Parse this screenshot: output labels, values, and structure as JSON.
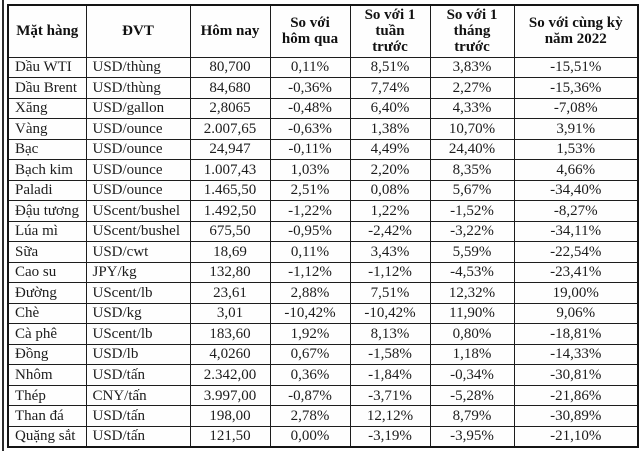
{
  "table": {
    "columns": [
      {
        "label": "Mặt hàng"
      },
      {
        "label": "ĐVT"
      },
      {
        "label": "Hôm nay"
      },
      {
        "label": "So với\nhôm qua"
      },
      {
        "label": "So với 1\ntuần\ntrước"
      },
      {
        "label": "So với 1\ntháng\ntrước"
      },
      {
        "label": "So với cùng kỳ\nnăm 2022"
      }
    ],
    "rows": [
      {
        "name": "Dầu WTI",
        "unit": "USD/thùng",
        "today": "80,700",
        "vs_yesterday": "0,11%",
        "vs_week": "8,51%",
        "vs_month": "3,83%",
        "vs_2022": "-15,51%"
      },
      {
        "name": "Dầu Brent",
        "unit": "USD/thùng",
        "today": "84,680",
        "vs_yesterday": "-0,36%",
        "vs_week": "7,74%",
        "vs_month": "2,27%",
        "vs_2022": "-15,36%"
      },
      {
        "name": "Xăng",
        "unit": "USD/gallon",
        "today": "2,8065",
        "vs_yesterday": "-0,48%",
        "vs_week": "6,40%",
        "vs_month": "4,33%",
        "vs_2022": "-7,08%"
      },
      {
        "name": "Vàng",
        "unit": "USD/ounce",
        "today": "2.007,65",
        "vs_yesterday": "-0,63%",
        "vs_week": "1,38%",
        "vs_month": "10,70%",
        "vs_2022": "3,91%"
      },
      {
        "name": "Bạc",
        "unit": "USD/ounce",
        "today": "24,947",
        "vs_yesterday": "-0,11%",
        "vs_week": "4,49%",
        "vs_month": "24,40%",
        "vs_2022": "1,53%"
      },
      {
        "name": "Bạch kim",
        "unit": "USD/ounce",
        "today": "1.007,43",
        "vs_yesterday": "1,03%",
        "vs_week": "2,20%",
        "vs_month": "8,35%",
        "vs_2022": "4,66%"
      },
      {
        "name": "Paladi",
        "unit": "USD/ounce",
        "today": "1.465,50",
        "vs_yesterday": "2,51%",
        "vs_week": "0,08%",
        "vs_month": "5,67%",
        "vs_2022": "-34,40%"
      },
      {
        "name": "Đậu tương",
        "unit": "UScent/bushel",
        "today": "1.492,50",
        "vs_yesterday": "-1,22%",
        "vs_week": "1,22%",
        "vs_month": "-1,52%",
        "vs_2022": "-8,27%"
      },
      {
        "name": "Lúa mì",
        "unit": "UScent/bushel",
        "today": "675,50",
        "vs_yesterday": "-0,95%",
        "vs_week": "-2,42%",
        "vs_month": "-3,22%",
        "vs_2022": "-34,11%"
      },
      {
        "name": "Sữa",
        "unit": "USD/cwt",
        "today": "18,69",
        "vs_yesterday": "0,11%",
        "vs_week": "3,43%",
        "vs_month": "5,59%",
        "vs_2022": "-22,54%"
      },
      {
        "name": "Cao su",
        "unit": "JPY/kg",
        "today": "132,80",
        "vs_yesterday": "-1,12%",
        "vs_week": "-1,12%",
        "vs_month": "-4,53%",
        "vs_2022": "-23,41%"
      },
      {
        "name": "Đường",
        "unit": "UScent/lb",
        "today": "23,61",
        "vs_yesterday": "2,88%",
        "vs_week": "7,51%",
        "vs_month": "12,32%",
        "vs_2022": "19,00%"
      },
      {
        "name": "Chè",
        "unit": "USD/kg",
        "today": "3,01",
        "vs_yesterday": "-10,42%",
        "vs_week": "-10,42%",
        "vs_month": "11,90%",
        "vs_2022": "9,06%"
      },
      {
        "name": "Cà phê",
        "unit": "UScent/lb",
        "today": "183,60",
        "vs_yesterday": "1,92%",
        "vs_week": "8,13%",
        "vs_month": "0,80%",
        "vs_2022": "-18,81%"
      },
      {
        "name": "Đồng",
        "unit": "USD/lb",
        "today": "4,0260",
        "vs_yesterday": "0,67%",
        "vs_week": "-1,58%",
        "vs_month": "1,18%",
        "vs_2022": "-14,33%"
      },
      {
        "name": "Nhôm",
        "unit": "USD/tấn",
        "today": "2.342,00",
        "vs_yesterday": "0,36%",
        "vs_week": "-1,84%",
        "vs_month": "-0,34%",
        "vs_2022": "-30,81%"
      },
      {
        "name": "Thép",
        "unit": "CNY/tấn",
        "today": "3.997,00",
        "vs_yesterday": "-0,87%",
        "vs_week": "-3,71%",
        "vs_month": "-5,28%",
        "vs_2022": "-21,86%"
      },
      {
        "name": "Than đá",
        "unit": "USD/tấn",
        "today": "198,00",
        "vs_yesterday": "2,78%",
        "vs_week": "12,12%",
        "vs_month": "8,79%",
        "vs_2022": "-30,89%"
      },
      {
        "name": "Quặng sắt",
        "unit": "USD/tấn",
        "today": "121,50",
        "vs_yesterday": "0,00%",
        "vs_week": "-3,19%",
        "vs_month": "-3,95%",
        "vs_2022": "-21,10%"
      }
    ]
  },
  "colors": {
    "text": "#1c1c1c",
    "border": "#1d1d1d",
    "background": "#ffffff"
  }
}
